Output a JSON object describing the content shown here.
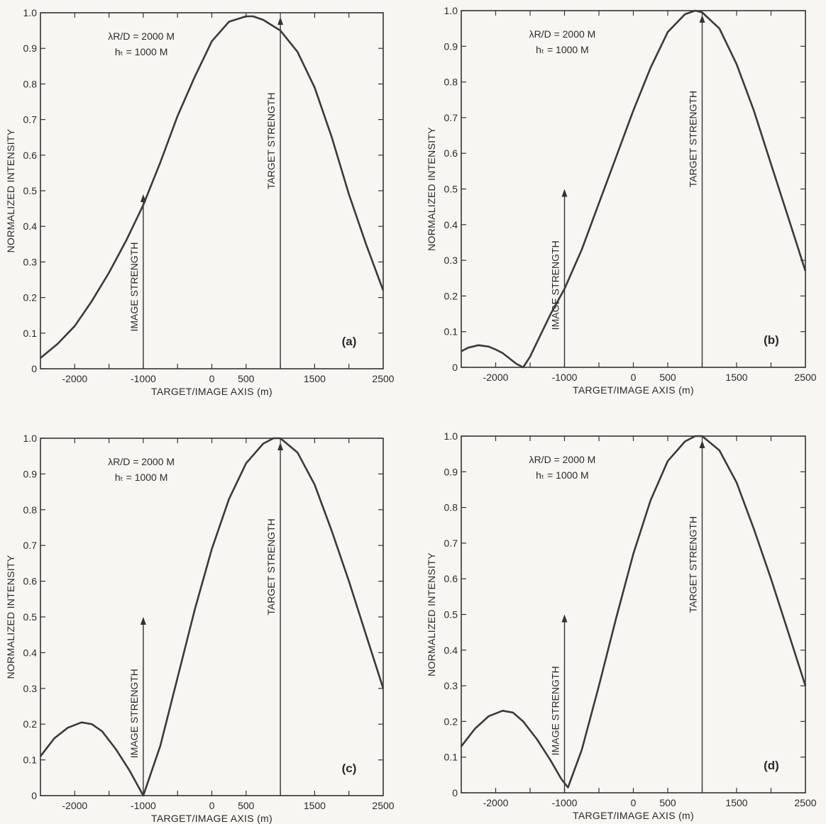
{
  "chart_data": [
    {
      "type": "line",
      "panel_label": "(a)",
      "annotation_lines": [
        "λR/D = 2000 M",
        "hₜ = 1000 M"
      ],
      "xlabel": "TARGET/IMAGE AXIS (m)",
      "ylabel": "NORMALIZED INTENSITY",
      "xlim": [
        -2500,
        2500
      ],
      "ylim": [
        0,
        1.0
      ],
      "x_ticks": [
        "-2000",
        "-1000",
        "0",
        "500",
        "1500",
        "2500"
      ],
      "y_ticks": [
        "0",
        "0.1",
        "0.2",
        "0.3",
        "0.4",
        "0.5",
        "0.6",
        "0.7",
        "0.8",
        "0.9",
        "1.0"
      ],
      "grid": false,
      "series": [
        {
          "x": [
            -2500,
            -2250,
            -2000,
            -1750,
            -1500,
            -1250,
            -1000,
            -750,
            -500,
            -250,
            0,
            250,
            500,
            600,
            750,
            1000,
            1250,
            1500,
            1750,
            2000,
            2250,
            2500
          ],
          "values": [
            0.03,
            0.07,
            0.12,
            0.19,
            0.27,
            0.36,
            0.46,
            0.58,
            0.71,
            0.82,
            0.92,
            0.975,
            0.99,
            0.99,
            0.98,
            0.95,
            0.89,
            0.79,
            0.65,
            0.49,
            0.35,
            0.22
          ]
        }
      ],
      "arrows": [
        {
          "label": "IMAGE STRENGTH",
          "x": -1000,
          "y": 0.49
        },
        {
          "label": "TARGET STRENGTH",
          "x": 1000,
          "y": 1.0
        }
      ]
    },
    {
      "type": "line",
      "panel_label": "(b)",
      "annotation_lines": [
        "λR/D = 2000 M",
        "hₜ = 1000 M"
      ],
      "xlabel": "TARGET/IMAGE AXIS (m)",
      "ylabel": "NORMALIZED INTENSITY",
      "xlim": [
        -2500,
        2500
      ],
      "ylim": [
        0,
        1.0
      ],
      "x_ticks": [
        "-2000",
        "-1000",
        "0",
        "500",
        "1500",
        "2500"
      ],
      "y_ticks": [
        "0",
        "0.1",
        "0.2",
        "0.3",
        "0.4",
        "0.5",
        "0.6",
        "0.7",
        "0.8",
        "0.9",
        "1.0"
      ],
      "grid": false,
      "series": [
        {
          "x": [
            -2500,
            -2400,
            -2250,
            -2100,
            -2000,
            -1900,
            -1800,
            -1700,
            -1600,
            -1500,
            -1350,
            -1200,
            -1000,
            -750,
            -500,
            -250,
            0,
            250,
            500,
            750,
            900,
            1000,
            1250,
            1500,
            1750,
            2000,
            2250,
            2500
          ],
          "values": [
            0.045,
            0.055,
            0.062,
            0.058,
            0.05,
            0.04,
            0.025,
            0.01,
            0.0,
            0.03,
            0.09,
            0.15,
            0.22,
            0.33,
            0.46,
            0.59,
            0.72,
            0.84,
            0.94,
            0.99,
            1.0,
            0.995,
            0.95,
            0.85,
            0.72,
            0.57,
            0.42,
            0.27
          ]
        }
      ],
      "arrows": [
        {
          "label": "IMAGE STRENGTH",
          "x": -1000,
          "y": 0.5
        },
        {
          "label": "TARGET STRENGTH",
          "x": 1000,
          "y": 1.0
        }
      ]
    },
    {
      "type": "line",
      "panel_label": "(c)",
      "annotation_lines": [
        "λR/D = 2000 M",
        "hₜ = 1000 M"
      ],
      "xlabel": "TARGET/IMAGE AXIS (m)",
      "ylabel": "NORMALIZED INTENSITY",
      "xlim": [
        -2500,
        2500
      ],
      "ylim": [
        0,
        1.0
      ],
      "x_ticks": [
        "-2000",
        "-1000",
        "0",
        "500",
        "1500",
        "2500"
      ],
      "y_ticks": [
        "0",
        "0.1",
        "0.2",
        "0.3",
        "0.4",
        "0.5",
        "0.6",
        "0.7",
        "0.8",
        "0.9",
        "1.0"
      ],
      "grid": false,
      "series": [
        {
          "x": [
            -2500,
            -2300,
            -2100,
            -1900,
            -1750,
            -1600,
            -1400,
            -1200,
            -1000,
            -750,
            -500,
            -250,
            0,
            250,
            500,
            750,
            900,
            1000,
            1250,
            1500,
            1750,
            2000,
            2250,
            2500
          ],
          "values": [
            0.11,
            0.16,
            0.19,
            0.205,
            0.2,
            0.18,
            0.13,
            0.07,
            0.0,
            0.14,
            0.33,
            0.52,
            0.69,
            0.83,
            0.93,
            0.985,
            1.0,
            1.0,
            0.96,
            0.87,
            0.74,
            0.6,
            0.45,
            0.3
          ]
        }
      ],
      "arrows": [
        {
          "label": "IMAGE STRENGTH",
          "x": -1000,
          "y": 0.5
        },
        {
          "label": "TARGET STRENGTH",
          "x": 1000,
          "y": 1.0
        }
      ]
    },
    {
      "type": "line",
      "panel_label": "(d)",
      "annotation_lines": [
        "λR/D = 2000 M",
        "hₜ = 1000 M"
      ],
      "xlabel": "TARGET/IMAGE AXIS (m)",
      "ylabel": "NORMALIZED INTENSITY",
      "xlim": [
        -2500,
        2500
      ],
      "ylim": [
        0,
        1.0
      ],
      "x_ticks": [
        "-2000",
        "-1000",
        "0",
        "500",
        "1500",
        "2500"
      ],
      "y_ticks": [
        "0",
        "0.1",
        "0.2",
        "0.3",
        "0.4",
        "0.5",
        "0.6",
        "0.7",
        "0.8",
        "0.9",
        "1.0"
      ],
      "grid": false,
      "series": [
        {
          "x": [
            -2500,
            -2300,
            -2100,
            -1900,
            -1750,
            -1600,
            -1400,
            -1200,
            -1050,
            -950,
            -750,
            -500,
            -250,
            0,
            250,
            500,
            750,
            900,
            1000,
            1250,
            1500,
            1750,
            2000,
            2250,
            2500
          ],
          "values": [
            0.13,
            0.18,
            0.215,
            0.23,
            0.225,
            0.2,
            0.15,
            0.09,
            0.04,
            0.015,
            0.12,
            0.3,
            0.49,
            0.67,
            0.82,
            0.93,
            0.985,
            1.0,
            1.0,
            0.96,
            0.87,
            0.74,
            0.6,
            0.45,
            0.3
          ]
        }
      ],
      "arrows": [
        {
          "label": "IMAGE STRENGTH",
          "x": -1000,
          "y": 0.5
        },
        {
          "label": "TARGET STRENGTH",
          "x": 1000,
          "y": 1.0
        }
      ]
    }
  ]
}
